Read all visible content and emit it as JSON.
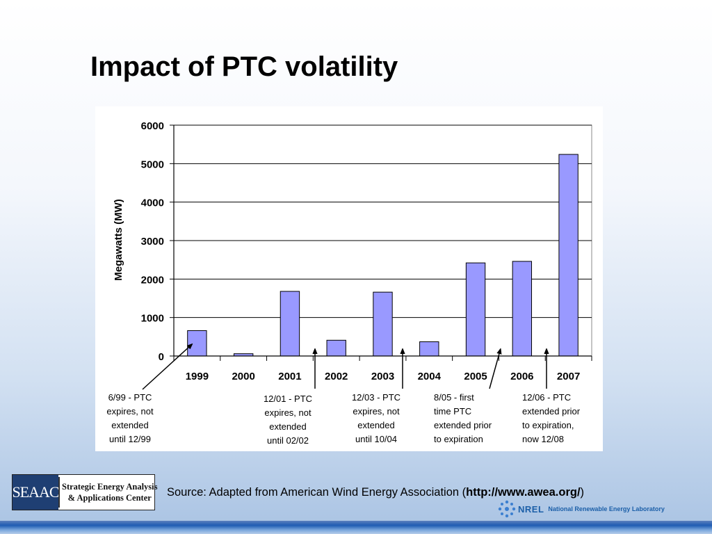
{
  "slide": {
    "title": "Impact of PTC volatility"
  },
  "chart_data": {
    "type": "bar",
    "title": "",
    "xlabel": "",
    "ylabel": "Megawatts (MW)",
    "categories": [
      "1999",
      "2000",
      "2001",
      "2002",
      "2003",
      "2004",
      "2005",
      "2006",
      "2007"
    ],
    "values": [
      660,
      60,
      1680,
      410,
      1660,
      370,
      2420,
      2460,
      5240
    ],
    "ylim": [
      0,
      6000
    ],
    "yticks": [
      0,
      1000,
      2000,
      3000,
      4000,
      5000,
      6000
    ],
    "bar_color": "#9999ff",
    "grid": true,
    "annotations": [
      {
        "lines": [
          "6/99 - PTC",
          "expires, not",
          "extended",
          "until 12/99"
        ],
        "points_to": "1999"
      },
      {
        "lines": [
          "12/01 - PTC",
          "expires, not",
          "extended",
          "until 02/02"
        ],
        "points_to": "2001/2002 boundary"
      },
      {
        "lines": [
          "12/03 - PTC",
          "expires, not",
          "extended",
          "until 10/04"
        ],
        "points_to": "2003/2004 boundary"
      },
      {
        "lines": [
          "8/05 - first",
          "time PTC",
          "extended prior",
          "to expiration"
        ],
        "points_to": "2005/2006 boundary"
      },
      {
        "lines": [
          "12/06 - PTC",
          "extended prior",
          "to expiration,",
          "now 12/08"
        ],
        "points_to": "2006/2007 boundary"
      }
    ]
  },
  "footer": {
    "logo_mark": "SEAAC",
    "logo_line1": "Strategic Energy Analysis",
    "logo_line2": "& Applications Center",
    "source_prefix": "Source: Adapted from American Wind Energy Association (",
    "source_url": "http://www.awea.org/",
    "source_suffix": ")",
    "nrel_mark": "NREL",
    "nrel_name": "National Renewable Energy Laboratory"
  }
}
